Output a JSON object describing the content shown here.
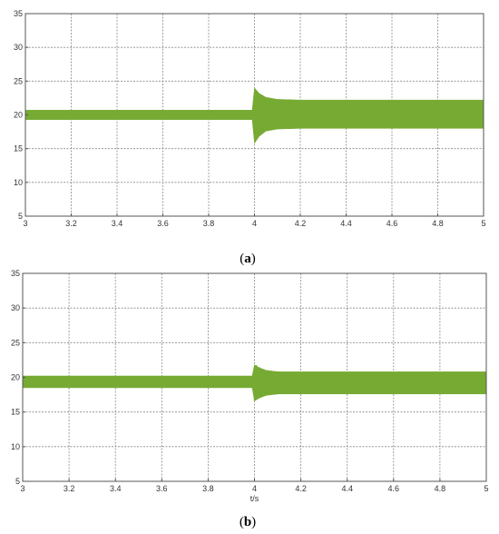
{
  "charts": [
    {
      "id": "a",
      "caption_open": "(",
      "caption_letter": "a",
      "caption_close": ")",
      "xlabel": ""
    },
    {
      "id": "b",
      "caption_open": "(",
      "caption_letter": "b",
      "caption_close": ")",
      "xlabel": "t/s"
    }
  ],
  "colors": {
    "signal": "#77aa33",
    "grid": "#888888",
    "axis": "#555555"
  },
  "chart_data": [
    {
      "type": "line",
      "title": "",
      "xlabel": "",
      "ylabel": "",
      "xlim": [
        3,
        5
      ],
      "ylim": [
        5,
        35
      ],
      "xticks": [
        "3",
        "3.2",
        "3.4",
        "3.6",
        "3.8",
        "4",
        "4.2",
        "4.4",
        "4.6",
        "4.8",
        "5"
      ],
      "yticks": [
        "5",
        "10",
        "15",
        "20",
        "25",
        "30",
        "35"
      ],
      "grid": true,
      "series": [
        {
          "envelope": [
            {
              "x": 3.0,
              "lower": 19.3,
              "upper": 20.7
            },
            {
              "x": 3.99,
              "lower": 19.3,
              "upper": 20.7
            },
            {
              "x": 4.0,
              "lower": 15.8,
              "upper": 24.0
            },
            {
              "x": 4.02,
              "lower": 16.8,
              "upper": 23.2
            },
            {
              "x": 4.05,
              "lower": 17.6,
              "upper": 22.6
            },
            {
              "x": 4.1,
              "lower": 17.9,
              "upper": 22.3
            },
            {
              "x": 4.2,
              "lower": 18.0,
              "upper": 22.2
            },
            {
              "x": 5.0,
              "lower": 18.0,
              "upper": 22.2
            }
          ]
        }
      ]
    },
    {
      "type": "line",
      "title": "",
      "xlabel": "t/s",
      "ylabel": "",
      "xlim": [
        3,
        5
      ],
      "ylim": [
        5,
        35
      ],
      "xticks": [
        "3",
        "3.2",
        "3.4",
        "3.6",
        "3.8",
        "4",
        "4.2",
        "4.4",
        "4.6",
        "4.8",
        "5"
      ],
      "yticks": [
        "5",
        "10",
        "15",
        "20",
        "25",
        "30",
        "35"
      ],
      "grid": true,
      "series": [
        {
          "envelope": [
            {
              "x": 3.0,
              "lower": 18.5,
              "upper": 20.2
            },
            {
              "x": 3.99,
              "lower": 18.5,
              "upper": 20.2
            },
            {
              "x": 4.0,
              "lower": 16.6,
              "upper": 21.8
            },
            {
              "x": 4.02,
              "lower": 17.0,
              "upper": 21.4
            },
            {
              "x": 4.05,
              "lower": 17.4,
              "upper": 21.0
            },
            {
              "x": 4.1,
              "lower": 17.6,
              "upper": 20.8
            },
            {
              "x": 4.2,
              "lower": 17.6,
              "upper": 20.8
            },
            {
              "x": 5.0,
              "lower": 17.6,
              "upper": 20.8
            }
          ]
        }
      ]
    }
  ]
}
